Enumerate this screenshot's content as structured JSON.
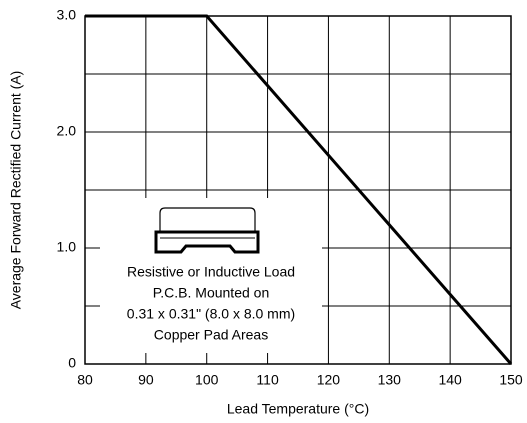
{
  "chart_data": {
    "type": "line",
    "xlabel": "Lead Temperature (°C)",
    "ylabel": "Average Forward Rectified Current (A)",
    "x": [
      80,
      100,
      150
    ],
    "series": [
      {
        "values": [
          3,
          3,
          0
        ],
        "color": "#000000"
      }
    ],
    "xlim": [
      80,
      150
    ],
    "xticks": [
      80,
      90,
      100,
      110,
      120,
      130,
      140,
      150
    ],
    "ylim": [
      0,
      3
    ],
    "yticks": [
      0,
      {
        "value": 1,
        "label": "1.0"
      },
      {
        "value": 2,
        "label": "2.0"
      },
      {
        "value": 3,
        "label": "3.0"
      }
    ],
    "minor_yticks": [
      0.5,
      1.5,
      2.5
    ],
    "grid": true,
    "annotation": [
      "Resistive or Inductive Load",
      "P.C.B. Mounted on",
      "0.31 x 0.31\" (8.0 x 8.0 mm)",
      "Copper Pad Areas"
    ]
  }
}
